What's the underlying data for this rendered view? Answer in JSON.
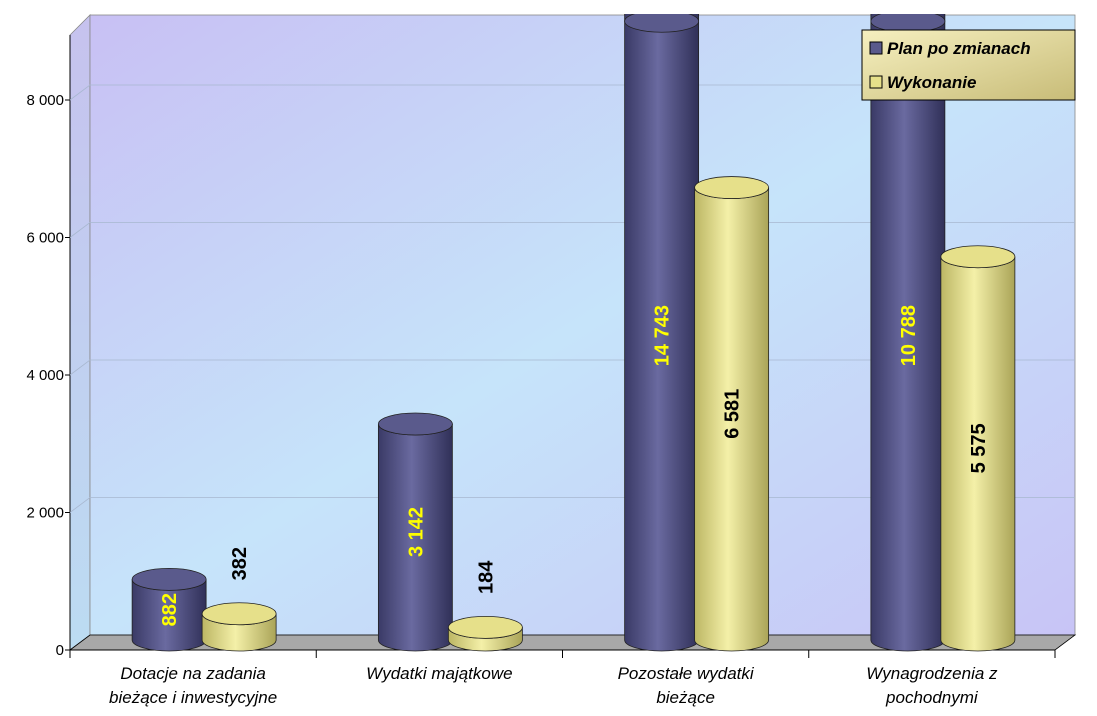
{
  "chart_data": {
    "type": "bar3d-cylinder",
    "categories": [
      "Dotacje na zadania\nbieżące i inwestycyjne",
      "Wydatki majątkowe",
      "Pozostałe wydatki\nbieżące",
      "Wynagrodzenia z\npochodnymi"
    ],
    "series": [
      {
        "name": "Plan po zmianach",
        "color": "#5a5a8c",
        "label_color": "#ffff00",
        "values": [
          882,
          3142,
          14743,
          10788
        ],
        "value_labels": [
          "882",
          "3 142",
          "14 743",
          "10 788"
        ]
      },
      {
        "name": "Wykonanie",
        "color": "#e6e08a",
        "label_color": "#000000",
        "values": [
          382,
          184,
          6581,
          5575
        ],
        "value_labels": [
          "382",
          "184",
          "6 581",
          "5 575"
        ]
      }
    ],
    "ylim": [
      0,
      9000
    ],
    "yticks": [
      0,
      {
        "value": 2000,
        "label": "2 000"
      },
      {
        "value": 4000,
        "label": "4 000"
      },
      {
        "value": 6000,
        "label": "6 000"
      },
      {
        "value": 8000,
        "label": "8 000"
      }
    ],
    "grid": true,
    "legend": "top-right"
  }
}
